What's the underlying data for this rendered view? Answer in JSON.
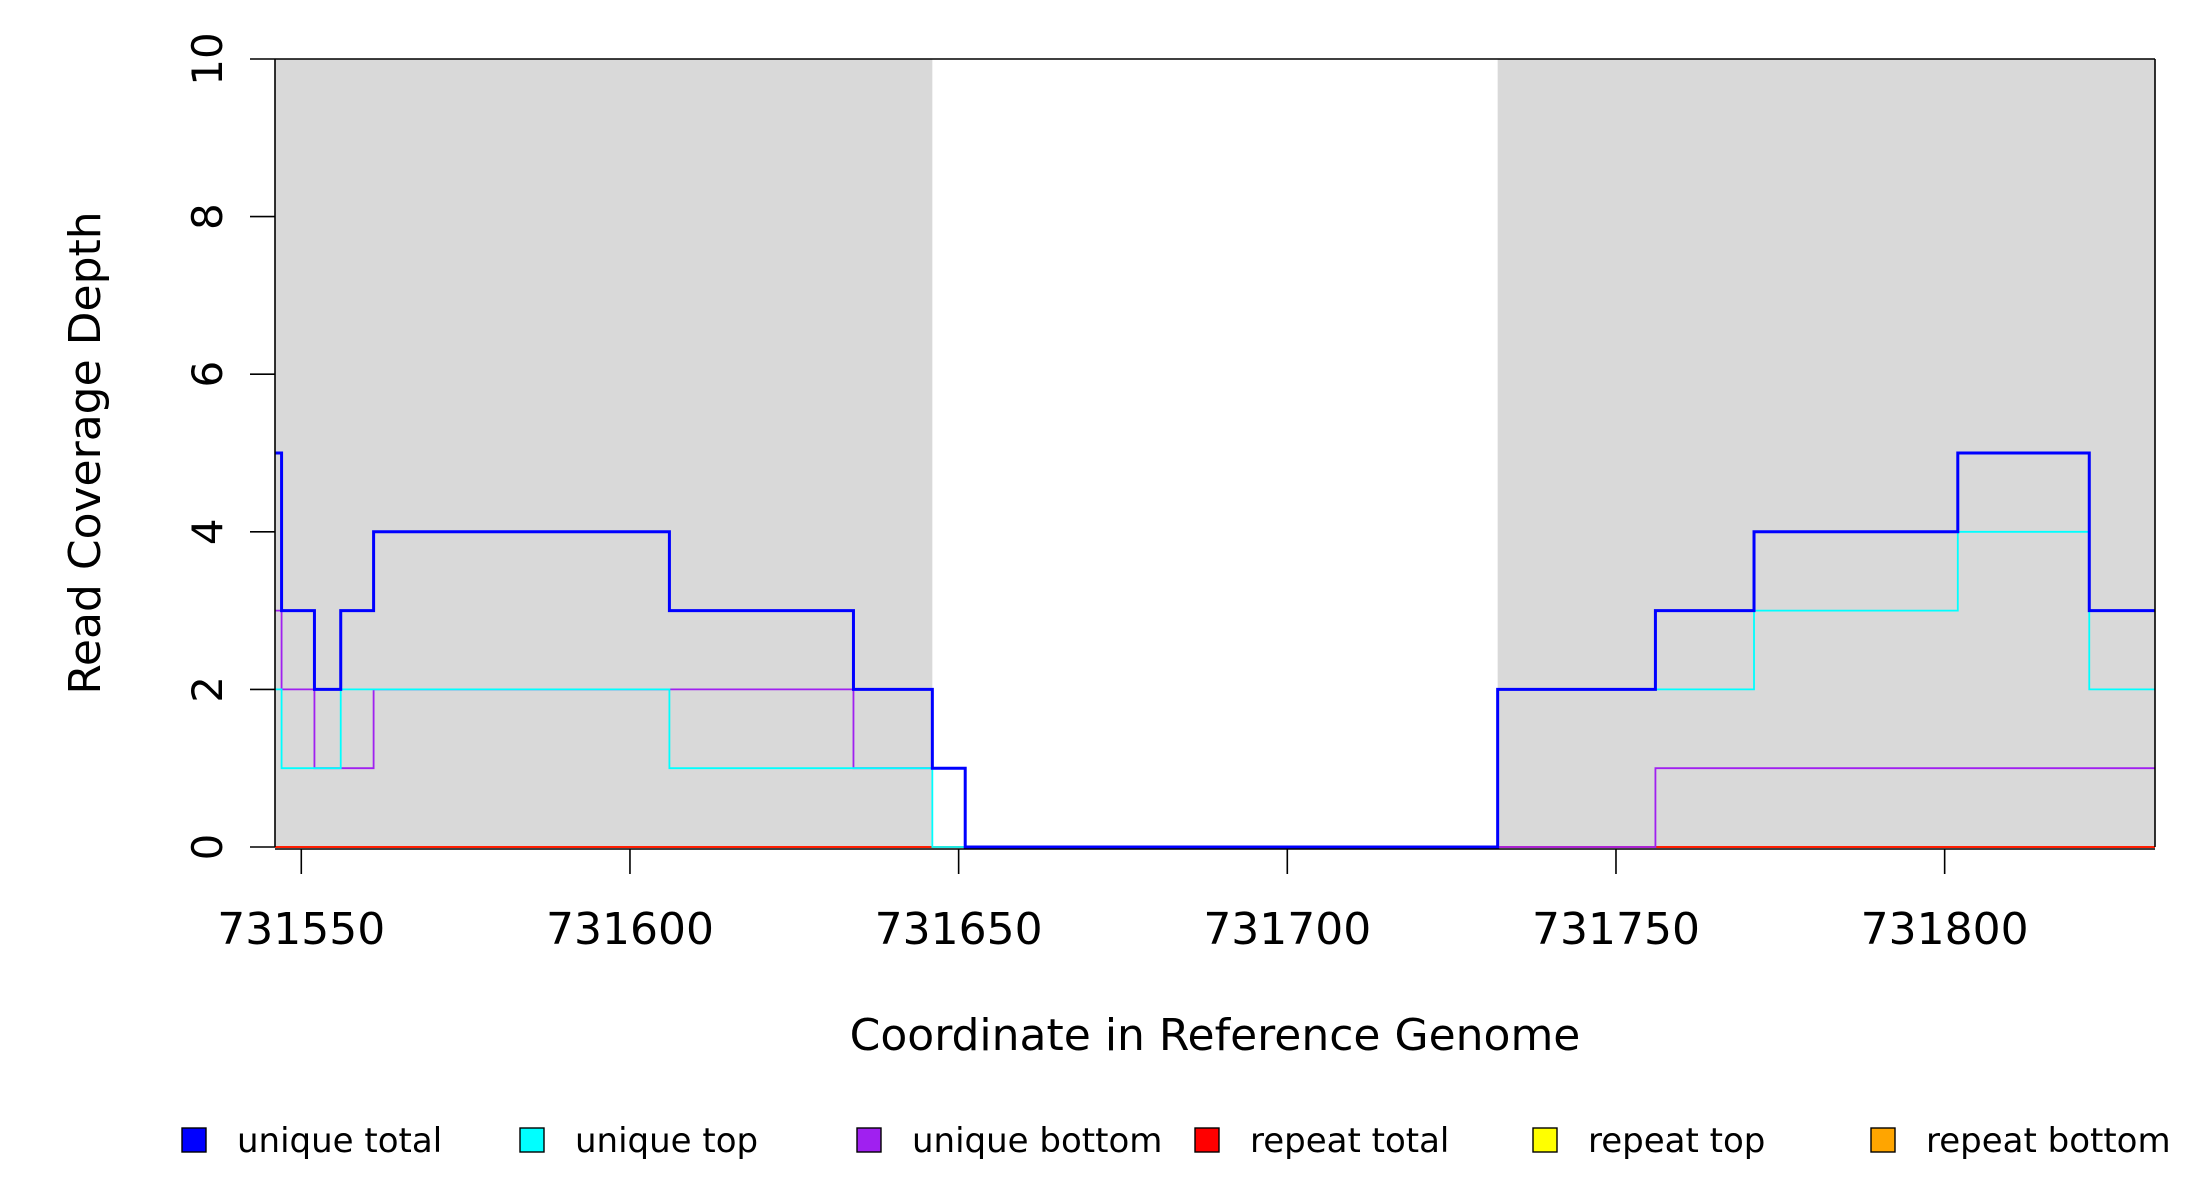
{
  "chart_data": {
    "type": "line",
    "xlabel": "Coordinate in Reference Genome",
    "ylabel": "Read Coverage Depth",
    "xlim": [
      731546,
      731832
    ],
    "ylim": [
      0,
      10
    ],
    "x_ticks": [
      731550,
      731600,
      731650,
      731700,
      731750,
      731800
    ],
    "x_tick_labels": [
      "731550",
      "731600",
      "731650",
      "731700",
      "731750",
      "731800"
    ],
    "y_ticks": [
      0,
      2,
      4,
      6,
      8,
      10
    ],
    "y_tick_labels": [
      "0",
      "2",
      "4",
      "6",
      "8",
      "10"
    ],
    "step_style": "steps",
    "shaded_regions": [
      {
        "start": 731546,
        "end": 731646,
        "color": "#d9d9d9"
      },
      {
        "start": 731732,
        "end": 731832,
        "color": "#d9d9d9"
      }
    ],
    "series": [
      {
        "name": "unique total",
        "color": "#0000ff",
        "points": [
          [
            731546,
            5
          ],
          [
            731547,
            3
          ],
          [
            731552,
            2
          ],
          [
            731556,
            3
          ],
          [
            731561,
            4
          ],
          [
            731606,
            3
          ],
          [
            731634,
            2
          ],
          [
            731646,
            1
          ],
          [
            731651,
            0
          ],
          [
            731732,
            2
          ],
          [
            731756,
            3
          ],
          [
            731771,
            4
          ],
          [
            731802,
            5
          ],
          [
            731822,
            3
          ],
          [
            731832,
            3
          ]
        ]
      },
      {
        "name": "unique top",
        "color": "#00ffff",
        "points": [
          [
            731546,
            2
          ],
          [
            731547,
            1
          ],
          [
            731556,
            2
          ],
          [
            731606,
            1
          ],
          [
            731646,
            0
          ],
          [
            731732,
            2
          ],
          [
            731771,
            3
          ],
          [
            731802,
            4
          ],
          [
            731822,
            2
          ],
          [
            731832,
            2
          ]
        ]
      },
      {
        "name": "unique bottom",
        "color": "#a020f0",
        "points": [
          [
            731546,
            3
          ],
          [
            731547,
            2
          ],
          [
            731552,
            1
          ],
          [
            731561,
            2
          ],
          [
            731634,
            1
          ],
          [
            731651,
            0
          ],
          [
            731756,
            1
          ],
          [
            731832,
            1
          ]
        ]
      },
      {
        "name": "repeat total",
        "color": "#ff0000",
        "points": [
          [
            731546,
            0
          ],
          [
            731832,
            0
          ]
        ]
      },
      {
        "name": "repeat top",
        "color": "#ffff00",
        "points": [
          [
            731546,
            0
          ],
          [
            731832,
            0
          ]
        ]
      },
      {
        "name": "repeat bottom",
        "color": "#ffa500",
        "points": [
          [
            731546,
            0
          ],
          [
            731832,
            0
          ]
        ]
      }
    ],
    "legend": {
      "placement": "bottom",
      "entries": [
        "unique total",
        "unique top",
        "unique bottom",
        "repeat total",
        "repeat top",
        "repeat bottom"
      ]
    }
  }
}
